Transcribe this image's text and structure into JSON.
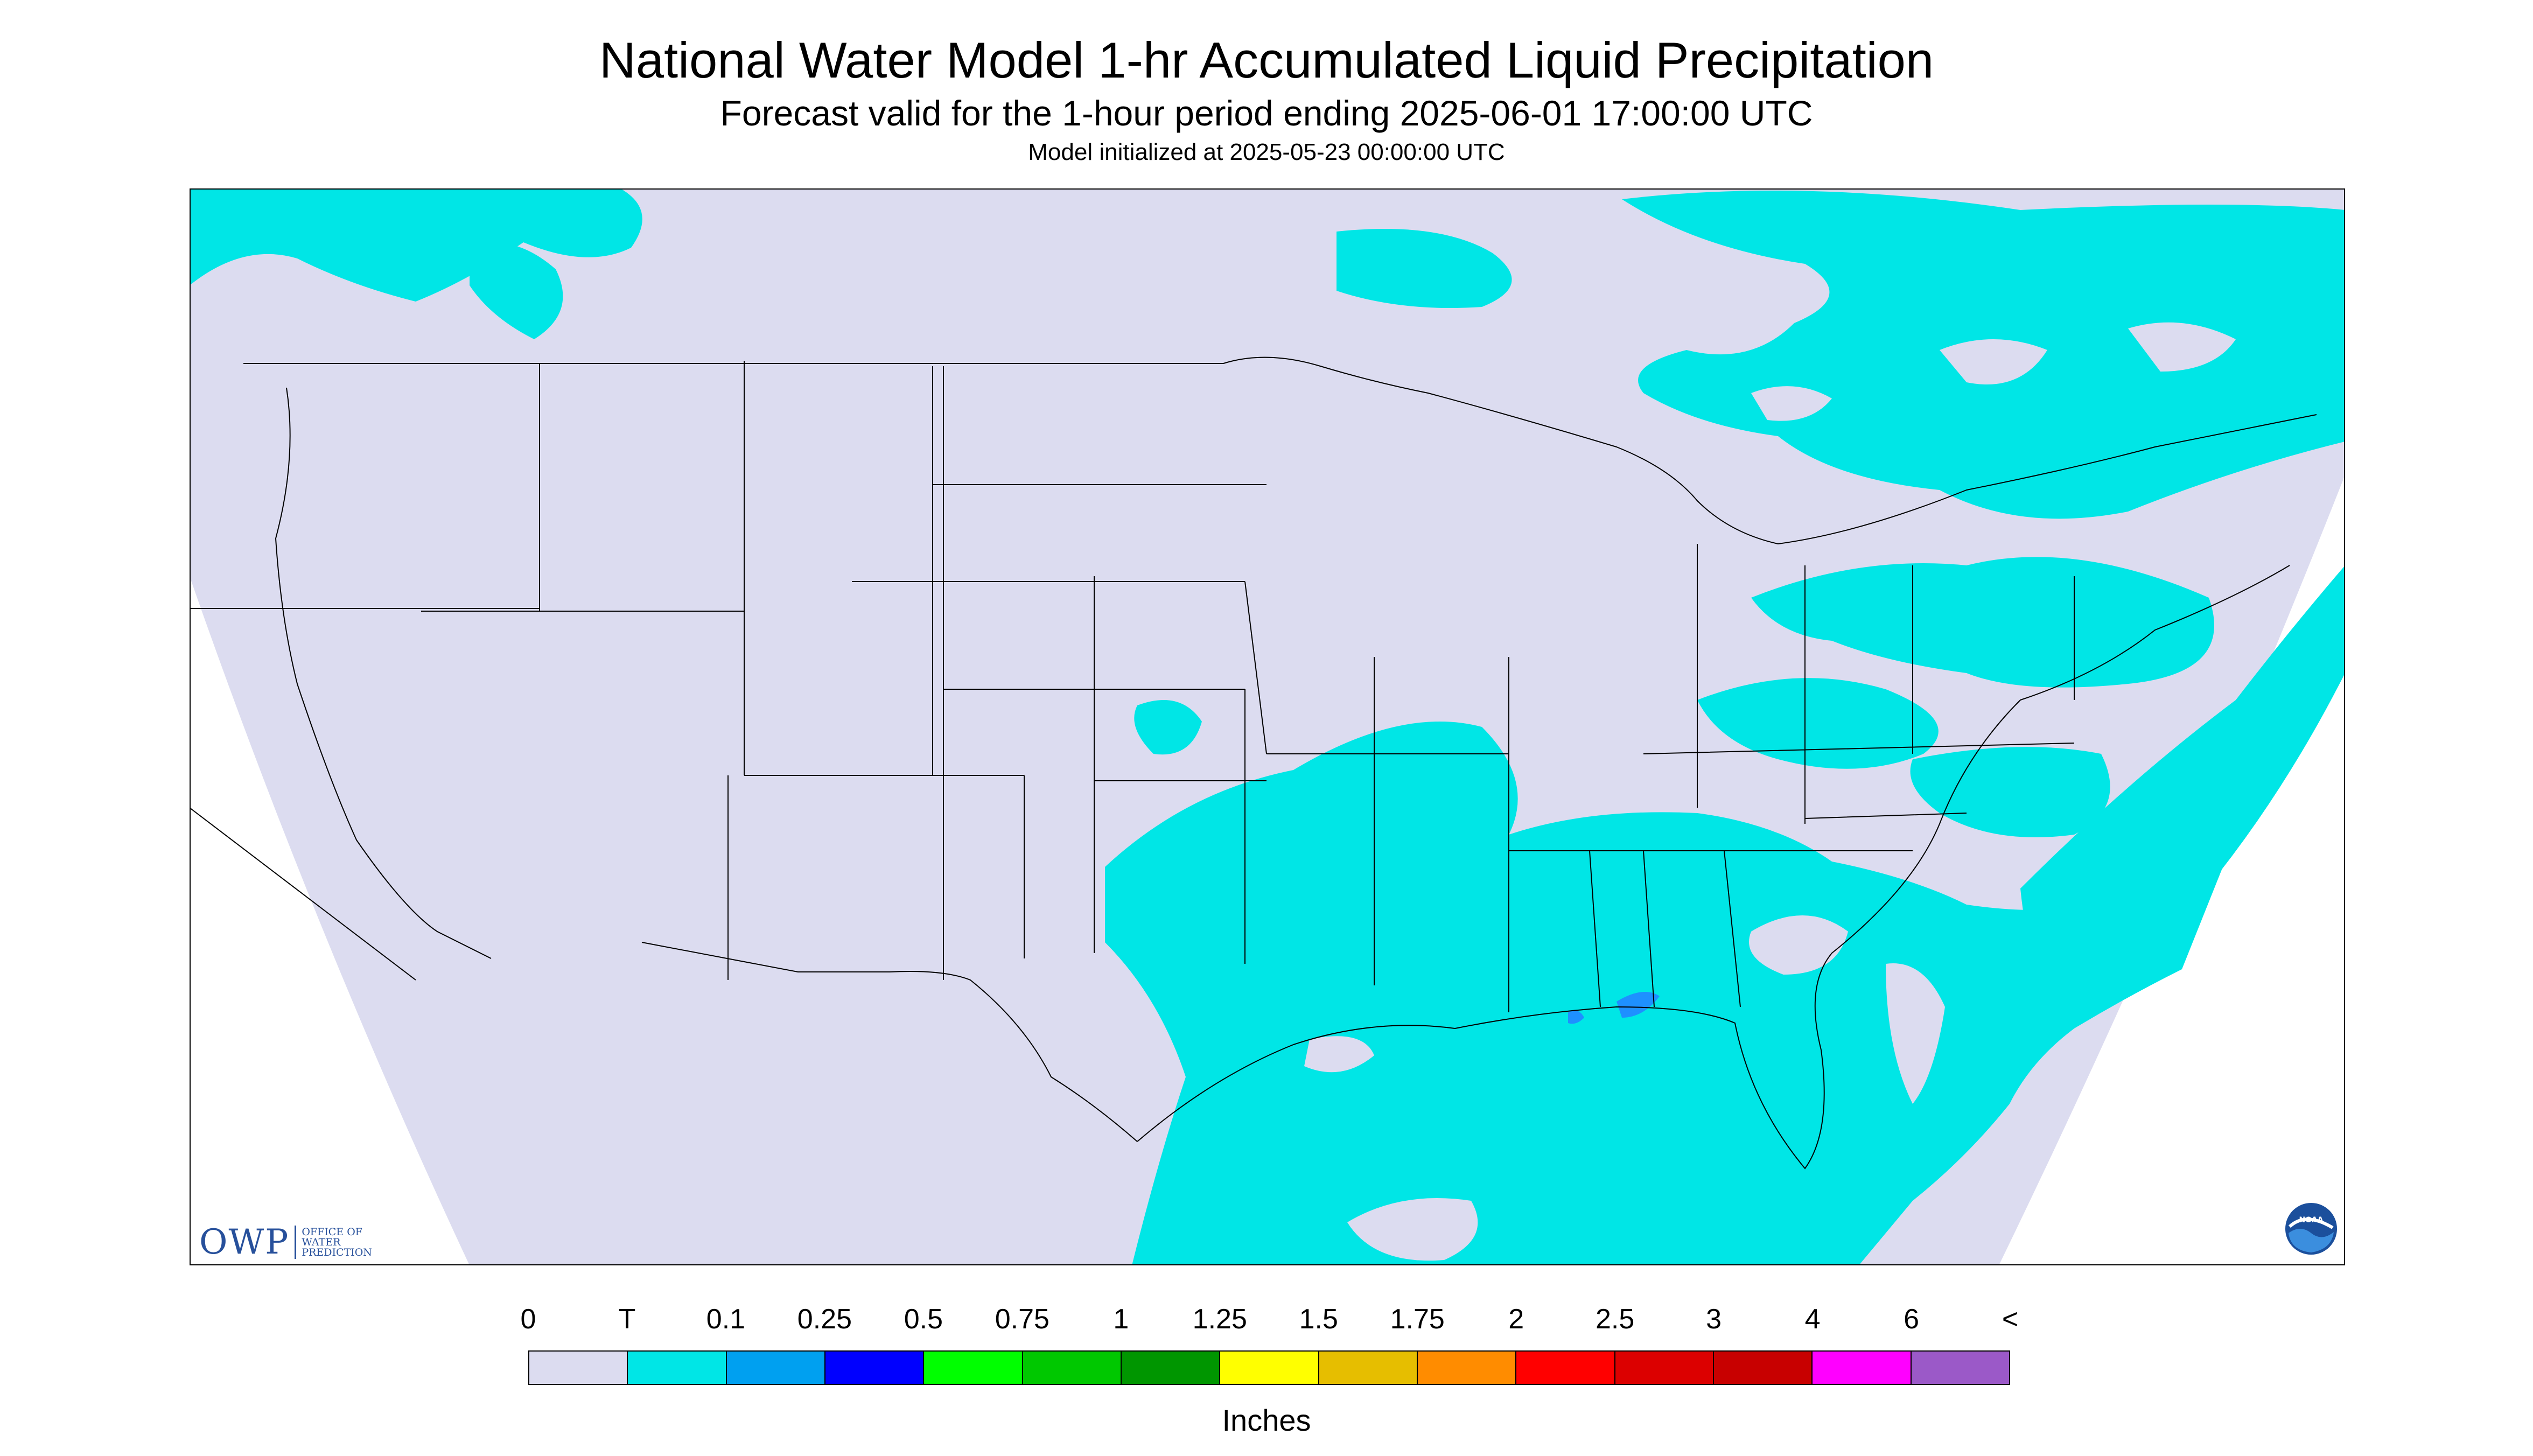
{
  "title": "National Water Model 1-hr Accumulated Liquid Precipitation",
  "subtitle": "Forecast valid for the 1-hour period ending 2025-06-01 17:00:00 UTC",
  "init_line": "Model initialized at 2025-05-23 00:00:00 UTC",
  "legend": {
    "tick_labels": [
      "0",
      "T",
      "0.1",
      "0.25",
      "0.5",
      "0.75",
      "1",
      "1.25",
      "1.5",
      "1.75",
      "2",
      "2.5",
      "3",
      "4",
      "6",
      "<"
    ],
    "colors": [
      "#dcdcf0",
      "#00e6e6",
      "#00a0f0",
      "#0000ff",
      "#00ff00",
      "#00c800",
      "#009600",
      "#ffff00",
      "#e6be00",
      "#ff8c00",
      "#ff0000",
      "#dc0000",
      "#c80000",
      "#ff00ff",
      "#9b59c8"
    ],
    "units": "Inches"
  },
  "map": {
    "background_color": "#dcdcf0",
    "precip_color": "#00e6e6",
    "accent_color": "#1e90ff",
    "border_color": "#000000"
  },
  "owp_logo": {
    "mark": "OWP",
    "text": "OFFICE OF\nWATER\nPREDICTION"
  },
  "noaa_logo": {
    "text": "NOAA"
  }
}
